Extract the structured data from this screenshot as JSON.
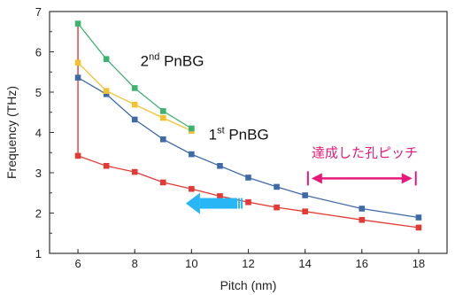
{
  "chart_data": {
    "type": "line",
    "title": "",
    "xlabel": "Pitch (nm)",
    "ylabel": "Frequency (THz)",
    "xlim": [
      5,
      19
    ],
    "ylim": [
      1,
      7
    ],
    "xticks": [
      6,
      8,
      10,
      12,
      14,
      16,
      18
    ],
    "yticks": [
      1,
      2,
      3,
      4,
      5,
      6,
      7
    ],
    "grid": false,
    "series": [
      {
        "color": "#e53935",
        "marker": "square",
        "x": [
          6,
          7,
          8,
          9,
          10,
          11,
          12,
          13,
          14,
          16,
          18
        ],
        "y": [
          3.42,
          3.17,
          3.02,
          2.76,
          2.6,
          2.42,
          2.27,
          2.14,
          2.04,
          1.83,
          1.64
        ]
      },
      {
        "color": "#3f6aa8",
        "marker": "square",
        "x": [
          6,
          7,
          8,
          9,
          10,
          11,
          12,
          13,
          14,
          16,
          18
        ],
        "y": [
          5.36,
          4.95,
          4.32,
          3.83,
          3.46,
          3.17,
          2.88,
          2.65,
          2.44,
          2.11,
          1.89
        ]
      },
      {
        "color": "#f2c12e",
        "marker": "square",
        "x": [
          6,
          7,
          8,
          9,
          10
        ],
        "y": [
          5.73,
          5.03,
          4.69,
          4.36,
          4.04
        ]
      },
      {
        "color": "#3cb371",
        "marker": "square",
        "x": [
          6,
          7,
          8,
          9,
          10
        ],
        "y": [
          6.7,
          5.82,
          5.1,
          4.53,
          4.1
        ]
      }
    ],
    "vertical_connector": {
      "x": 6,
      "y_from": 3.42,
      "y_to": 6.7,
      "color": "#e53935"
    },
    "annotations": {
      "second_band": {
        "base": "2",
        "sup": "nd",
        "rest": " PnBG",
        "x": 8.2,
        "y": 5.65
      },
      "first_band": {
        "base": "1",
        "sup": "st",
        "rest": " PnBG",
        "x": 10.6,
        "y": 3.82
      },
      "achieved_pitch": {
        "text": "達成した孔ピッチ",
        "x_center": 16.1,
        "y": 3.38,
        "arrow_from": 14.1,
        "arrow_to": 17.9,
        "arrow_y": 2.86,
        "color": "#e6197a"
      },
      "trend_arrow": {
        "from_x": 11.8,
        "to_x": 9.8,
        "y": 2.24,
        "color": "#29b6f6"
      }
    }
  }
}
